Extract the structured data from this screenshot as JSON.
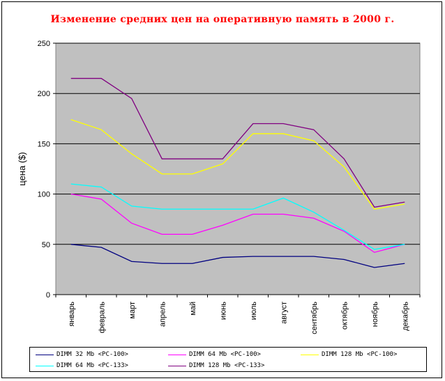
{
  "chart_data": {
    "type": "line",
    "title": "Изменение средних цен на оперативную память в 2000 г.",
    "xlabel": "",
    "ylabel": "цена ($)",
    "ylim": [
      0,
      250
    ],
    "yticks": [
      "0",
      "50",
      "100",
      "150",
      "200",
      "250"
    ],
    "grid": true,
    "plot_background": "#c0c0c0",
    "legend_position": "bottom",
    "categories": [
      "январь",
      "февраль",
      "март",
      "апрель",
      "май",
      "июнь",
      "июль",
      "август",
      "сентябрь",
      "октябрь",
      "ноябрь",
      "декабрь"
    ],
    "series": [
      {
        "name": "DIMM 32 Mb <PC-100>",
        "color": "#000080",
        "values": [
          50,
          47,
          33,
          31,
          31,
          37,
          38,
          38,
          38,
          35,
          27,
          31
        ]
      },
      {
        "name": "DIMM 64 Mb <PC-100>",
        "color": "#ff00ff",
        "values": [
          100,
          95,
          71,
          60,
          60,
          69,
          80,
          80,
          76,
          63,
          42,
          50
        ]
      },
      {
        "name": "DIMM 128 Mb <PC-100>",
        "color": "#ffff00",
        "values": [
          174,
          164,
          140,
          120,
          120,
          130,
          160,
          160,
          153,
          127,
          85,
          90
        ]
      },
      {
        "name": "DIMM 64 Mb <PC-133>",
        "color": "#00ffff",
        "values": [
          110,
          107,
          88,
          85,
          85,
          85,
          85,
          96,
          82,
          64,
          45,
          50
        ]
      },
      {
        "name": "DIMM 128 Mb <PC-133>",
        "color": "#800080",
        "values": [
          215,
          215,
          195,
          135,
          135,
          135,
          170,
          170,
          164,
          135,
          87,
          92
        ]
      }
    ]
  }
}
